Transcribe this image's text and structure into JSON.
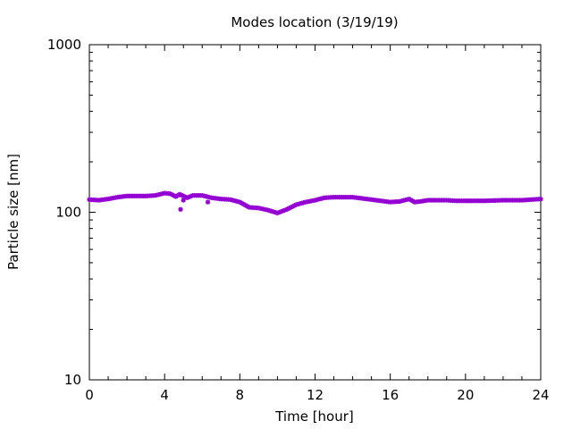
{
  "chart_data": {
    "type": "scatter",
    "title": "Modes location (3/19/19)",
    "xlabel": "Time [hour]",
    "ylabel": "Particle size [nm]",
    "xlim": [
      0,
      24
    ],
    "ylim": [
      10,
      1000
    ],
    "yscale": "log",
    "grid": false,
    "xticks": [
      0,
      4,
      8,
      12,
      16,
      20,
      24
    ],
    "xtick_labels": [
      "0",
      "4",
      "8",
      "12",
      "16",
      "20",
      "24"
    ],
    "yticks": [
      10,
      100,
      1000
    ],
    "ytick_labels": [
      "10",
      "100",
      "1000"
    ],
    "marker_color": "#9400D3",
    "series": [
      {
        "profile": [
          [
            0.0,
            119
          ],
          [
            0.5,
            118
          ],
          [
            1.0,
            120
          ],
          [
            1.5,
            123
          ],
          [
            2.0,
            125
          ],
          [
            2.5,
            125
          ],
          [
            3.0,
            125
          ],
          [
            3.5,
            126
          ],
          [
            4.0,
            130
          ],
          [
            4.3,
            129
          ],
          [
            4.6,
            124
          ],
          [
            4.8,
            128
          ],
          [
            5.2,
            122
          ],
          [
            5.5,
            126
          ],
          [
            6.0,
            126
          ],
          [
            6.5,
            122
          ],
          [
            7.0,
            120
          ],
          [
            7.5,
            119
          ],
          [
            8.0,
            115
          ],
          [
            8.5,
            107
          ],
          [
            9.0,
            106
          ],
          [
            9.5,
            103
          ],
          [
            10.0,
            99
          ],
          [
            10.5,
            104
          ],
          [
            11.0,
            111
          ],
          [
            11.5,
            115
          ],
          [
            12.0,
            118
          ],
          [
            12.5,
            122
          ],
          [
            13.0,
            123
          ],
          [
            13.5,
            123
          ],
          [
            14.0,
            123
          ],
          [
            14.5,
            121
          ],
          [
            15.0,
            119
          ],
          [
            15.5,
            117
          ],
          [
            16.0,
            115
          ],
          [
            16.5,
            116
          ],
          [
            17.0,
            120
          ],
          [
            17.3,
            115
          ],
          [
            17.6,
            116
          ],
          [
            18.0,
            118
          ],
          [
            18.5,
            118
          ],
          [
            19.0,
            118
          ],
          [
            19.5,
            117
          ],
          [
            20.0,
            117
          ],
          [
            21.0,
            117
          ],
          [
            22.0,
            118
          ],
          [
            23.0,
            118
          ],
          [
            24.0,
            120
          ]
        ],
        "outliers": [
          [
            4.85,
            104
          ],
          [
            5.0,
            118
          ],
          [
            6.3,
            115
          ]
        ]
      }
    ]
  }
}
